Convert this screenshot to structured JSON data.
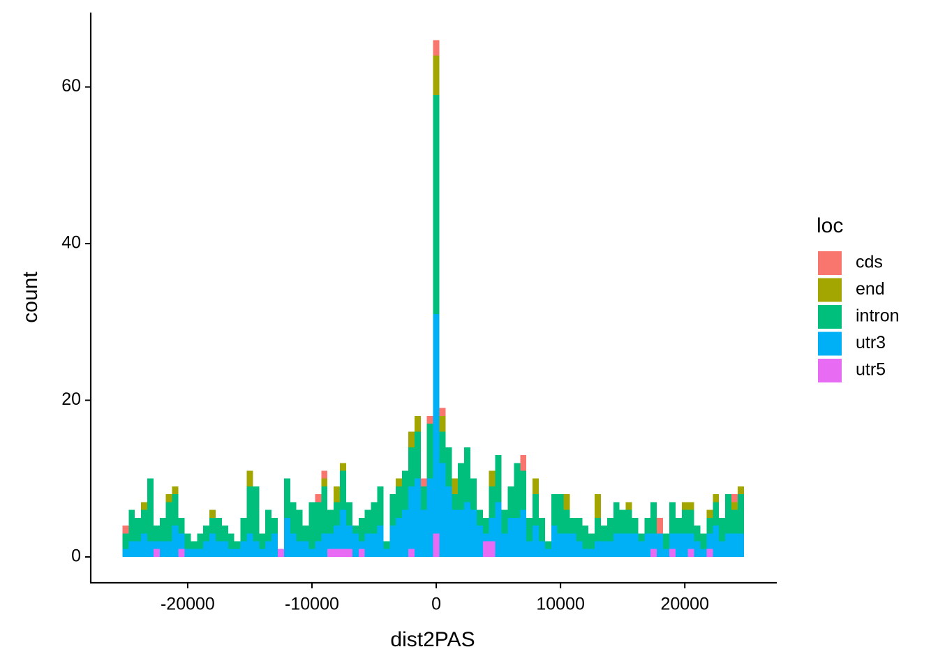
{
  "chart_data": {
    "type": "histogram",
    "x_label": "dist2PAS",
    "y_label": "count",
    "legend_title": "loc",
    "xlim": [
      -27800,
      27400
    ],
    "ylim": [
      -3.3,
      69.5
    ],
    "xticks": [
      -20000,
      -10000,
      0,
      10000,
      20000
    ],
    "yticks": [
      0,
      20,
      40,
      60
    ],
    "bins": [
      -25250,
      -24750,
      -24250,
      -23750,
      -23250,
      -22750,
      -22250,
      -21750,
      -21250,
      -20750,
      -20250,
      -19750,
      -19250,
      -18750,
      -18250,
      -17750,
      -17250,
      -16750,
      -16250,
      -15750,
      -15250,
      -14750,
      -14250,
      -13750,
      -13250,
      -12750,
      -12250,
      -11750,
      -11250,
      -10750,
      -10250,
      -9750,
      -9250,
      -8750,
      -8250,
      -7750,
      -7250,
      -6750,
      -6250,
      -5750,
      -5250,
      -4750,
      -4250,
      -3750,
      -3250,
      -2750,
      -2250,
      -1750,
      -1250,
      -750,
      -250,
      250,
      750,
      1250,
      1750,
      2250,
      2750,
      3250,
      3750,
      4250,
      4750,
      5250,
      5750,
      6250,
      6750,
      7250,
      7750,
      8250,
      8750,
      9250,
      9750,
      10250,
      10750,
      11250,
      11750,
      12250,
      12750,
      13250,
      13750,
      14250,
      14750,
      15250,
      15750,
      16250,
      16750,
      17250,
      17750,
      18250,
      18750,
      19250,
      19750,
      20250,
      20750,
      21250,
      21750,
      22250,
      22750,
      23250,
      23750,
      24250,
      24750
    ],
    "series": [
      {
        "name": "cds",
        "color": "#F8766D",
        "values": [
          1,
          0,
          0,
          0,
          0,
          0,
          0,
          0,
          0,
          0,
          0,
          0,
          0,
          0,
          0,
          0,
          0,
          0,
          0,
          0,
          0,
          0,
          0,
          0,
          0,
          0,
          0,
          0,
          0,
          0,
          0,
          1,
          1,
          0,
          0,
          0,
          0,
          0,
          0,
          0,
          0,
          0,
          0,
          0,
          0,
          0,
          0,
          0,
          1,
          1,
          2,
          1,
          0,
          0,
          0,
          0,
          0,
          0,
          0,
          0,
          0,
          0,
          0,
          0,
          2,
          0,
          0,
          0,
          0,
          0,
          0,
          0,
          0,
          0,
          0,
          0,
          0,
          0,
          0,
          0,
          0,
          0,
          0,
          0,
          0,
          0,
          2,
          0,
          0,
          0,
          0,
          0,
          0,
          0,
          0,
          0,
          0,
          0,
          1,
          0
        ]
      },
      {
        "name": "end",
        "color": "#A3A500",
        "values": [
          0,
          0,
          0,
          1,
          0,
          0,
          0,
          1,
          1,
          0,
          0,
          0,
          0,
          0,
          1,
          0,
          0,
          0,
          0,
          0,
          2,
          0,
          0,
          0,
          0,
          0,
          0,
          0,
          0,
          0,
          0,
          0,
          1,
          0,
          2,
          1,
          0,
          0,
          0,
          0,
          0,
          0,
          0,
          0,
          1,
          0,
          2,
          2,
          0,
          0,
          5,
          2,
          0,
          2,
          0,
          0,
          0,
          0,
          0,
          2,
          0,
          0,
          0,
          0,
          0,
          0,
          2,
          0,
          0,
          0,
          0,
          2,
          0,
          0,
          0,
          0,
          3,
          0,
          0,
          0,
          0,
          1,
          0,
          0,
          0,
          0,
          0,
          0,
          0,
          0,
          1,
          1,
          0,
          0,
          1,
          1,
          0,
          0,
          1,
          1
        ]
      },
      {
        "name": "intron",
        "color": "#00BF7D",
        "values": [
          2,
          4,
          3,
          3,
          8,
          2,
          3,
          5,
          4,
          2,
          2,
          1,
          2,
          2,
          2,
          3,
          2,
          2,
          1,
          3,
          6,
          7,
          2,
          4,
          2,
          0,
          5,
          4,
          4,
          2,
          6,
          5,
          6,
          3,
          3,
          5,
          3,
          1,
          3,
          3,
          4,
          5,
          1,
          4,
          4,
          5,
          5,
          6,
          3,
          7,
          28,
          4,
          5,
          2,
          6,
          7,
          4,
          2,
          2,
          4,
          6,
          3,
          4,
          7,
          5,
          3,
          4,
          3,
          1,
          4,
          5,
          3,
          2,
          3,
          3,
          2,
          3,
          2,
          3,
          4,
          3,
          3,
          2,
          1,
          2,
          4,
          0,
          2,
          4,
          2,
          3,
          3,
          2,
          2,
          2,
          3,
          3,
          5,
          3,
          5
        ]
      },
      {
        "name": "utr3",
        "color": "#00B0F6",
        "values": [
          1,
          2,
          2,
          3,
          2,
          1,
          2,
          2,
          4,
          2,
          1,
          1,
          1,
          2,
          3,
          2,
          2,
          1,
          1,
          2,
          3,
          2,
          1,
          2,
          3,
          0,
          5,
          3,
          2,
          2,
          1,
          2,
          3,
          2,
          3,
          5,
          3,
          3,
          1,
          3,
          3,
          4,
          1,
          4,
          5,
          6,
          8,
          10,
          6,
          10,
          28,
          12,
          9,
          6,
          6,
          7,
          6,
          4,
          1,
          3,
          7,
          3,
          5,
          5,
          6,
          2,
          4,
          2,
          1,
          4,
          3,
          3,
          3,
          2,
          1,
          1,
          2,
          2,
          2,
          3,
          3,
          3,
          3,
          2,
          3,
          2,
          3,
          1,
          2,
          3,
          3,
          2,
          2,
          1,
          2,
          4,
          2,
          3,
          3,
          3
        ]
      },
      {
        "name": "utr5",
        "color": "#E76BF3",
        "values": [
          0,
          0,
          0,
          0,
          0,
          1,
          0,
          0,
          0,
          1,
          0,
          0,
          0,
          0,
          0,
          0,
          0,
          0,
          0,
          0,
          0,
          0,
          0,
          0,
          0,
          1,
          0,
          0,
          0,
          0,
          0,
          0,
          0,
          1,
          1,
          1,
          1,
          0,
          1,
          0,
          0,
          0,
          0,
          0,
          0,
          0,
          1,
          0,
          0,
          0,
          3,
          0,
          0,
          0,
          0,
          0,
          0,
          0,
          2,
          2,
          0,
          0,
          0,
          0,
          0,
          0,
          0,
          0,
          0,
          0,
          0,
          0,
          0,
          0,
          0,
          0,
          0,
          0,
          0,
          0,
          0,
          0,
          0,
          0,
          0,
          1,
          0,
          0,
          1,
          0,
          0,
          1,
          0,
          0,
          1,
          0,
          0,
          0,
          0,
          0
        ]
      }
    ]
  }
}
